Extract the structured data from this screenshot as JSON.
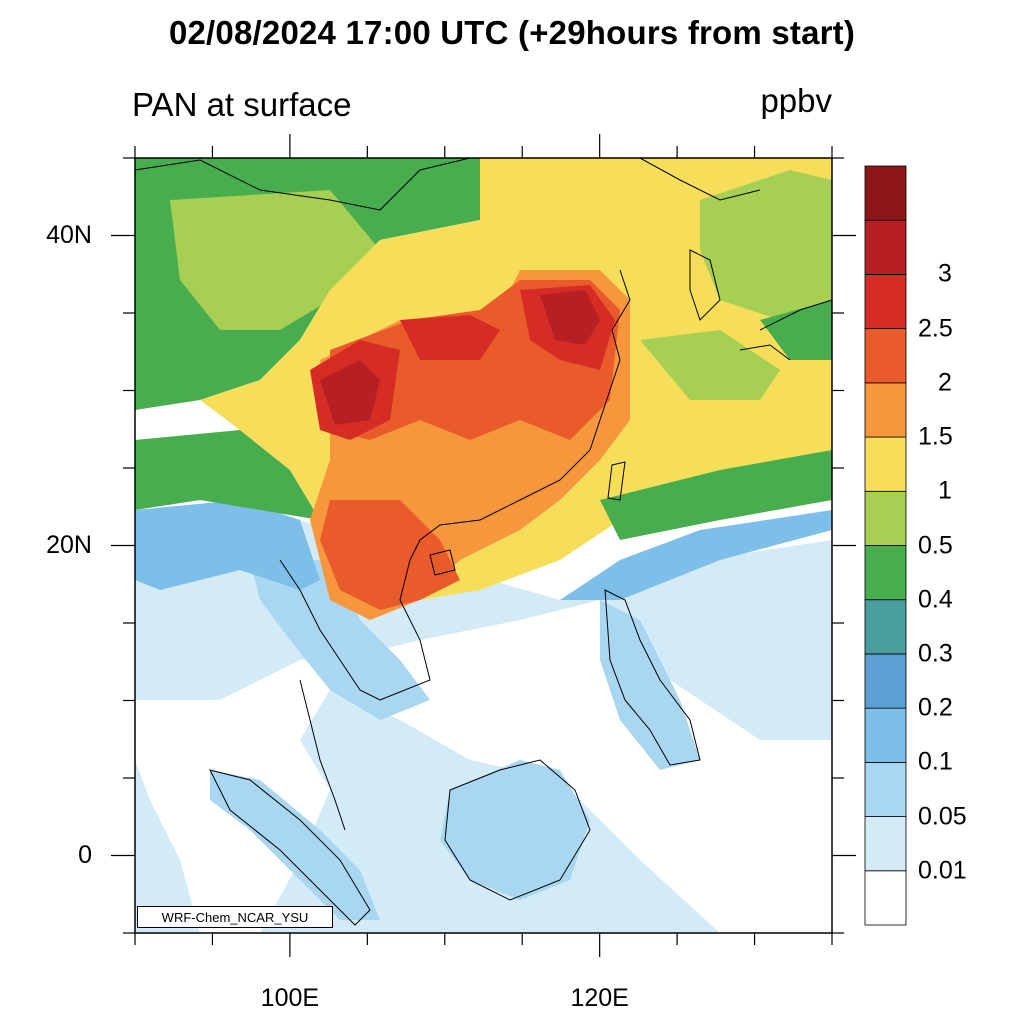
{
  "header": {
    "title": "02/08/2024 17:00 UTC (+29hours from start)",
    "variable": "PAN at surface",
    "units": "ppbv"
  },
  "map": {
    "lat_labels": [
      "40N",
      "20N",
      "0"
    ],
    "lat_values": [
      40,
      20,
      0
    ],
    "lon_labels": [
      "100E",
      "120E"
    ],
    "lon_values": [
      100,
      120
    ],
    "extent": {
      "lon_min": 90,
      "lon_max": 135,
      "lat_min": -5,
      "lat_max": 45
    },
    "credit": "WRF-Chem_NCAR_YSU"
  },
  "colorbar": {
    "levels": [
      "0.01",
      "0.05",
      "0.1",
      "0.2",
      "0.3",
      "0.4",
      "0.5",
      "1",
      "1.5",
      "2",
      "2.5",
      "3"
    ],
    "colors": [
      "#ffffff",
      "#d3ebf7",
      "#a9d7f1",
      "#7dbfe8",
      "#5b9fd4",
      "#4a9e9e",
      "#48ad4f",
      "#a6cf53",
      "#f7de5a",
      "#f6973e",
      "#ea5b2b",
      "#d52d25",
      "#b61f23",
      "#8e1618"
    ]
  }
}
